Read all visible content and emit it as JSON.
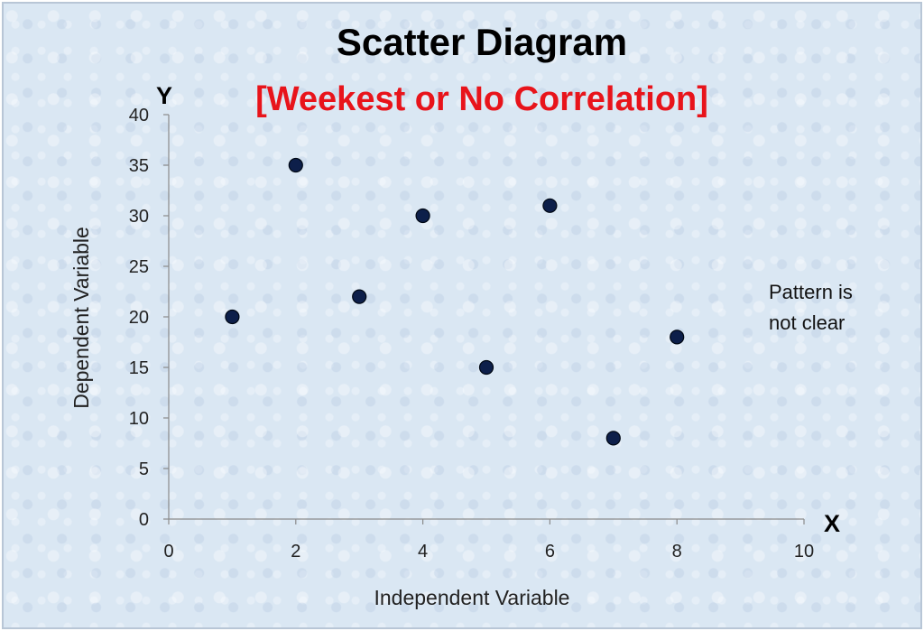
{
  "chart_data": {
    "type": "scatter",
    "title": "Scatter Diagram",
    "subtitle": "[Weekest or No Correlation]",
    "xlabel": "Independent Variable",
    "ylabel": "Dependent Variable",
    "x_axis_letter": "X",
    "y_axis_letter": "Y",
    "xlim": [
      0,
      10
    ],
    "ylim": [
      0,
      40
    ],
    "x_ticks": [
      0,
      2,
      4,
      6,
      8,
      10
    ],
    "y_ticks": [
      0,
      5,
      10,
      15,
      20,
      25,
      30,
      35,
      40
    ],
    "grid": false,
    "legend": "none",
    "marker_color": "#0d1f4a",
    "subtitle_color": "#e8141b",
    "annotation": {
      "lines": [
        "Pattern is",
        "not clear"
      ]
    },
    "series": [
      {
        "points": [
          {
            "x": 1,
            "y": 20
          },
          {
            "x": 2,
            "y": 35
          },
          {
            "x": 3,
            "y": 22
          },
          {
            "x": 4,
            "y": 30
          },
          {
            "x": 5,
            "y": 15
          },
          {
            "x": 6,
            "y": 31
          },
          {
            "x": 7,
            "y": 8
          },
          {
            "x": 8,
            "y": 18
          }
        ]
      }
    ]
  }
}
